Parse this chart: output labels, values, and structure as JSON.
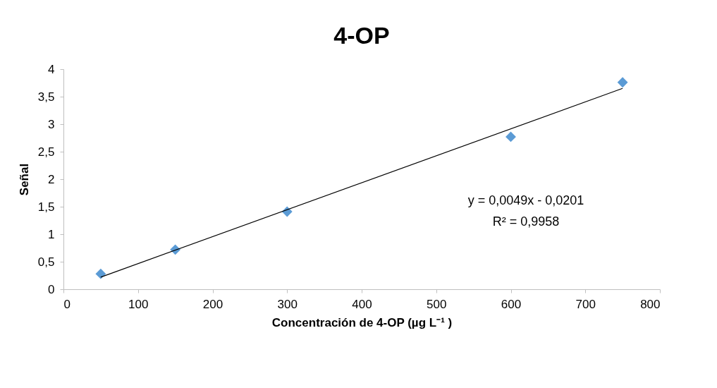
{
  "chart_data": {
    "type": "scatter",
    "title": "4-OP",
    "xlabel": "Concentración de 4-OP (µg L⁻¹ )",
    "ylabel": "Señal",
    "series": [
      {
        "color": "#5b9bd5",
        "marker": "diamond",
        "x": [
          50,
          150,
          300,
          600,
          750
        ],
        "values": [
          0.28,
          0.72,
          1.41,
          2.77,
          3.76
        ]
      },
      {
        "type": "line",
        "color": "#000000",
        "x": [
          50,
          750
        ],
        "values": [
          0.22,
          3.65
        ]
      }
    ],
    "annotations": [
      "y = 0,0049x - 0,0201",
      "R² = 0,9958"
    ],
    "xlim": [
      0,
      800
    ],
    "xticks": [
      0,
      100,
      200,
      300,
      400,
      500,
      600,
      700,
      800
    ],
    "ylim": [
      0,
      4
    ],
    "yticks": [
      0,
      {
        "value": 0.5,
        "label": "0,5"
      },
      1,
      {
        "value": 1.5,
        "label": "1,5"
      },
      2,
      {
        "value": 2.5,
        "label": "2,5"
      },
      3,
      {
        "value": 3.5,
        "label": "3,5"
      },
      4
    ],
    "grid": false
  }
}
